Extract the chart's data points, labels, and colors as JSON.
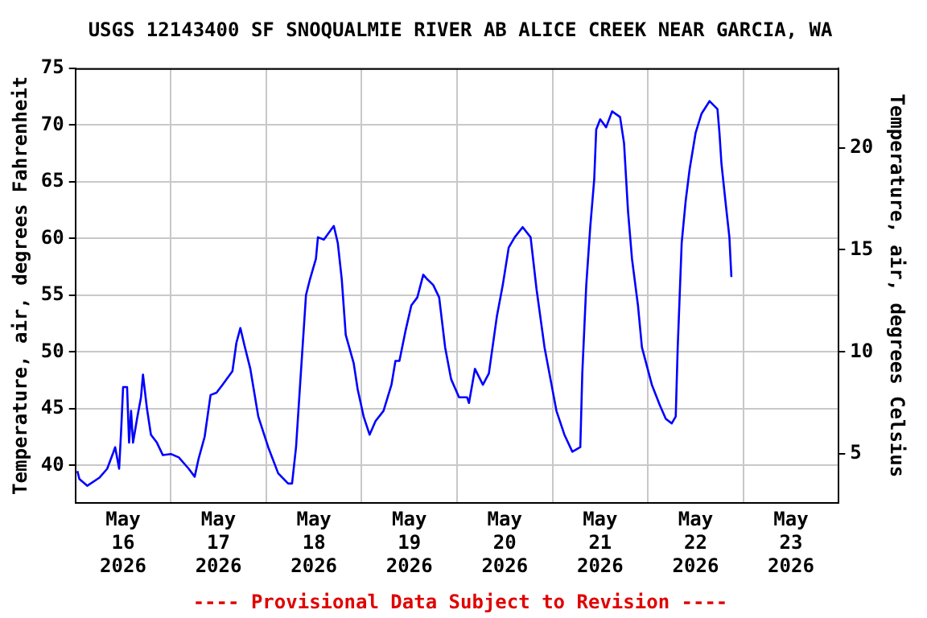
{
  "chart_data": {
    "type": "line",
    "title": "USGS 12143400 SF SNOQUALMIE RIVER AB ALICE CREEK NEAR GARCIA, WA",
    "ylabel": "Temperature, air, degrees Fahrenheit",
    "y2label": "Temperature, air, degrees Celsius",
    "annotations": [
      "---- Provisional Data Subject to Revision ----"
    ],
    "x": [
      "2026-05-16T00:30",
      "2026-05-16T01:00",
      "2026-05-16T03:00",
      "2026-05-16T06:00",
      "2026-05-16T08:00",
      "2026-05-16T09:30",
      "2026-05-16T10:00",
      "2026-05-16T11:00",
      "2026-05-16T11:30",
      "2026-05-16T12:00",
      "2026-05-16T13:00",
      "2026-05-16T13:30",
      "2026-05-16T14:00",
      "2026-05-16T14:30",
      "2026-05-16T15:30",
      "2026-05-16T16:30",
      "2026-05-16T17:00",
      "2026-05-16T18:00",
      "2026-05-16T19:00",
      "2026-05-16T20:30",
      "2026-05-16T22:00",
      "2026-05-17T00:00",
      "2026-05-17T02:00",
      "2026-05-17T04:30",
      "2026-05-17T06:00",
      "2026-05-17T07:00",
      "2026-05-17T08:30",
      "2026-05-17T10:00",
      "2026-05-17T11:30",
      "2026-05-17T13:00",
      "2026-05-17T15:30",
      "2026-05-17T16:30",
      "2026-05-17T17:30",
      "2026-05-17T18:30",
      "2026-05-17T20:00",
      "2026-05-17T22:00",
      "2026-05-18T00:30",
      "2026-05-18T03:00",
      "2026-05-18T05:30",
      "2026-05-18T06:30",
      "2026-05-18T07:30",
      "2026-05-18T08:30",
      "2026-05-18T10:00",
      "2026-05-18T11:00",
      "2026-05-18T12:30",
      "2026-05-18T13:00",
      "2026-05-18T14:30",
      "2026-05-18T17:00",
      "2026-05-18T18:00",
      "2026-05-18T19:00",
      "2026-05-18T20:00",
      "2026-05-18T22:00",
      "2026-05-18T23:00",
      "2026-05-19T00:30",
      "2026-05-19T02:00",
      "2026-05-19T03:30",
      "2026-05-19T05:30",
      "2026-05-19T07:30",
      "2026-05-19T08:30",
      "2026-05-19T09:30",
      "2026-05-19T11:00",
      "2026-05-19T12:30",
      "2026-05-19T14:00",
      "2026-05-19T15:30",
      "2026-05-19T16:30",
      "2026-05-19T18:00",
      "2026-05-19T19:30",
      "2026-05-19T21:00",
      "2026-05-19T22:30",
      "2026-05-20T00:30",
      "2026-05-20T02:30",
      "2026-05-20T03:00",
      "2026-05-20T04:30",
      "2026-05-20T06:30",
      "2026-05-20T08:00",
      "2026-05-20T10:00",
      "2026-05-20T11:30",
      "2026-05-20T13:00",
      "2026-05-20T14:30",
      "2026-05-20T16:30",
      "2026-05-20T18:30",
      "2026-05-20T20:00",
      "2026-05-20T22:00",
      "2026-05-20T23:30",
      "2026-05-21T01:00",
      "2026-05-21T03:00",
      "2026-05-21T05:00",
      "2026-05-21T07:00",
      "2026-05-21T07:30",
      "2026-05-21T08:30",
      "2026-05-21T09:30",
      "2026-05-21T10:30",
      "2026-05-21T11:00",
      "2026-05-21T12:00",
      "2026-05-21T13:30",
      "2026-05-21T15:00",
      "2026-05-21T17:00",
      "2026-05-21T18:00",
      "2026-05-21T19:00",
      "2026-05-21T20:00",
      "2026-05-21T21:30",
      "2026-05-21T22:30",
      "2026-05-22T01:00",
      "2026-05-22T03:00",
      "2026-05-22T04:30",
      "2026-05-22T06:00",
      "2026-05-22T07:00",
      "2026-05-22T07:30",
      "2026-05-22T08:30",
      "2026-05-22T09:30",
      "2026-05-22T10:30",
      "2026-05-22T12:00",
      "2026-05-22T13:30",
      "2026-05-22T15:30",
      "2026-05-22T17:30",
      "2026-05-22T18:00",
      "2026-05-22T18:30",
      "2026-05-22T19:30",
      "2026-05-22T20:30",
      "2026-05-22T21:00"
    ],
    "series": [
      {
        "color": "#0000ff",
        "values": [
          39.5,
          38.8,
          38.2,
          38.9,
          39.7,
          41.1,
          41.6,
          39.7,
          43,
          46.9,
          46.9,
          42,
          44.8,
          42,
          44.1,
          46,
          48,
          45,
          42.7,
          42,
          40.9,
          41,
          40.7,
          39.7,
          39,
          40.6,
          42.5,
          46.2,
          46.4,
          47.1,
          48.3,
          50.8,
          52.1,
          50.6,
          48.5,
          44.3,
          41.6,
          39.3,
          38.4,
          38.4,
          41.6,
          47,
          55,
          56.4,
          58.2,
          60.1,
          59.9,
          61.1,
          59.6,
          56.4,
          51.5,
          49,
          46.7,
          44.3,
          42.7,
          43.9,
          44.8,
          47.1,
          49.2,
          49.2,
          51.8,
          54.1,
          54.8,
          56.8,
          56.4,
          55.9,
          54.8,
          50.4,
          47.6,
          46,
          46,
          45.5,
          48.5,
          47.1,
          48.1,
          53.1,
          55.9,
          59.2,
          60.1,
          61,
          60.1,
          55.5,
          50.4,
          47.6,
          44.8,
          42.7,
          41.2,
          41.6,
          48.1,
          55.9,
          61,
          65.2,
          69.6,
          70.5,
          69.8,
          71.2,
          70.7,
          68.4,
          62.4,
          58.2,
          54.1,
          50.4,
          47.1,
          45.3,
          44.1,
          43.7,
          44.3,
          50.4,
          59.6,
          63.3,
          66.1,
          69.3,
          71,
          72.1,
          71.4,
          69.3,
          66.6,
          63.3,
          60.1,
          56.6
        ]
      }
    ],
    "xlim": [
      "2026-05-16T00:00",
      "2026-05-24T00:00"
    ],
    "xticks": [
      {
        "value": "2026-05-16T00:00",
        "label": null
      },
      {
        "value": "2026-05-16T12:00",
        "label": "May 16 2026"
      },
      {
        "value": "2026-05-17T00:00",
        "label": null
      },
      {
        "value": "2026-05-17T12:00",
        "label": "May 17 2026"
      },
      {
        "value": "2026-05-18T00:00",
        "label": null
      },
      {
        "value": "2026-05-18T12:00",
        "label": "May 18 2026"
      },
      {
        "value": "2026-05-19T00:00",
        "label": null
      },
      {
        "value": "2026-05-19T12:00",
        "label": "May 19 2026"
      },
      {
        "value": "2026-05-20T00:00",
        "label": null
      },
      {
        "value": "2026-05-20T12:00",
        "label": "May 20 2026"
      },
      {
        "value": "2026-05-21T00:00",
        "label": null
      },
      {
        "value": "2026-05-21T12:00",
        "label": "May 21 2026"
      },
      {
        "value": "2026-05-22T00:00",
        "label": null
      },
      {
        "value": "2026-05-22T12:00",
        "label": "May 22 2026"
      },
      {
        "value": "2026-05-23T00:00",
        "label": null
      },
      {
        "value": "2026-05-23T12:00",
        "label": "May 23 2026"
      },
      {
        "value": "2026-05-24T00:00",
        "label": null
      }
    ],
    "ylim": [
      36.7,
      75
    ],
    "yticks": [
      40,
      45,
      50,
      55,
      60,
      65,
      70,
      75
    ],
    "y2lim": [
      2.61,
      23.89
    ],
    "y2ticks": [
      5,
      10,
      15,
      20
    ],
    "grid": true,
    "legend": false,
    "marker": "none",
    "line_style": "solid"
  }
}
